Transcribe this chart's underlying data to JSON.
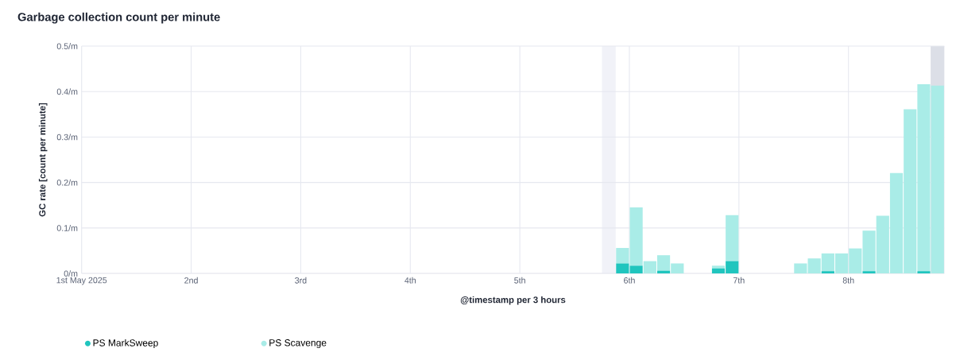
{
  "chart_data": {
    "type": "bar",
    "stacked": true,
    "title": "Garbage collection count per minute",
    "xlabel": "@timestamp per 3 hours",
    "ylabel": "GC rate [count per minute]",
    "x": [
      "2025-05-05T22:30",
      "2025-05-06T01:30",
      "2025-05-06T04:30",
      "2025-05-06T07:30",
      "2025-05-06T10:30",
      "2025-05-06T19:30",
      "2025-05-06T22:30",
      "2025-05-07T13:30",
      "2025-05-07T16:30",
      "2025-05-07T19:30",
      "2025-05-07T22:30",
      "2025-05-08T01:30",
      "2025-05-08T04:30",
      "2025-05-08T07:30",
      "2025-05-08T10:30",
      "2025-05-08T13:30",
      "2025-05-08T16:30",
      "2025-05-08T19:30"
    ],
    "series": [
      {
        "name": "PS MarkSweep",
        "color": "#20c5be",
        "values": [
          0.022,
          0.017,
          0,
          0.006,
          0,
          0.011,
          0.027,
          0,
          0,
          0.005,
          0,
          0,
          0.005,
          0,
          0,
          0,
          0.005,
          0
        ]
      },
      {
        "name": "PS Scavenge",
        "color": "#a9ece7",
        "values": [
          0.034,
          0.128,
          0.027,
          0.034,
          0.022,
          0.006,
          0.101,
          0.022,
          0.033,
          0.039,
          0.044,
          0.055,
          0.089,
          0.127,
          0.221,
          0.361,
          0.411,
          0.413
        ]
      }
    ],
    "xlim": [
      "2025-05-01T00:00",
      "2025-05-08T21:00"
    ],
    "xticks": [
      {
        "value": "2025-05-01",
        "label": "1st May 2025"
      },
      {
        "value": "2025-05-02",
        "label": "2nd"
      },
      {
        "value": "2025-05-03",
        "label": "3rd"
      },
      {
        "value": "2025-05-04",
        "label": "4th"
      },
      {
        "value": "2025-05-05",
        "label": "5th"
      },
      {
        "value": "2025-05-06",
        "label": "6th"
      },
      {
        "value": "2025-05-07",
        "label": "7th"
      },
      {
        "value": "2025-05-08",
        "label": "8th"
      }
    ],
    "ylim": [
      0,
      0.5
    ],
    "yticks": [
      {
        "value": 0,
        "label": "0/m"
      },
      {
        "value": 0.1,
        "label": "0.1/m"
      },
      {
        "value": 0.2,
        "label": "0.2/m"
      },
      {
        "value": 0.3,
        "label": "0.3/m"
      },
      {
        "value": 0.4,
        "label": "0.4/m"
      },
      {
        "value": 0.5,
        "label": "0.5/m"
      }
    ],
    "bands": [
      {
        "axis": "x",
        "from": "2025-05-05T18:00",
        "to": "2025-05-05T21:00",
        "color": "#f1f2f8"
      },
      {
        "axis": "x",
        "from": "2025-05-08T18:00",
        "to": "2025-05-08T21:00",
        "color": "#dcdfe7"
      }
    ],
    "grid": true,
    "legend": "bottom",
    "marker": "circle"
  }
}
